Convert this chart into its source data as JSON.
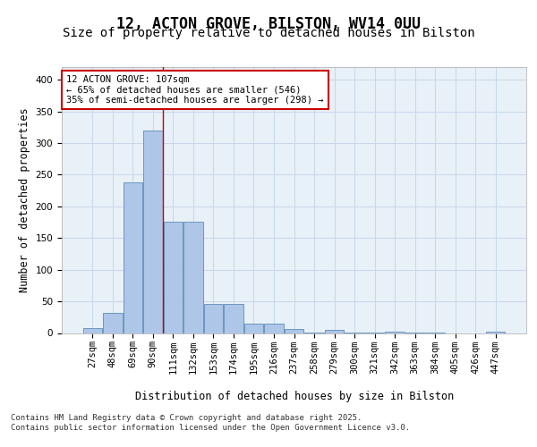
{
  "title": "12, ACTON GROVE, BILSTON, WV14 0UU",
  "subtitle": "Size of property relative to detached houses in Bilston",
  "xlabel": "Distribution of detached houses by size in Bilston",
  "ylabel": "Number of detached properties",
  "bar_labels": [
    "27sqm",
    "48sqm",
    "69sqm",
    "90sqm",
    "111sqm",
    "132sqm",
    "153sqm",
    "174sqm",
    "195sqm",
    "216sqm",
    "237sqm",
    "258sqm",
    "279sqm",
    "300sqm",
    "321sqm",
    "342sqm",
    "363sqm",
    "384sqm",
    "405sqm",
    "426sqm",
    "447sqm"
  ],
  "bar_values": [
    8,
    32,
    238,
    320,
    176,
    176,
    46,
    46,
    15,
    15,
    6,
    1,
    5,
    1,
    1,
    2,
    1,
    1,
    0,
    0,
    2
  ],
  "bar_color": "#aec6e8",
  "bar_edge_color": "#5b8db8",
  "bar_edge_width": 0.6,
  "grid_color": "#c8d8e8",
  "bg_color": "#e8f0f8",
  "red_line_x": 3.5,
  "annotation_text": "12 ACTON GROVE: 107sqm\n← 65% of detached houses are smaller (546)\n35% of semi-detached houses are larger (298) →",
  "annotation_box_color": "#ffffff",
  "annotation_box_edge": "#cc0000",
  "ylim": [
    0,
    420
  ],
  "yticks": [
    0,
    50,
    100,
    150,
    200,
    250,
    300,
    350,
    400
  ],
  "footer_line1": "Contains HM Land Registry data © Crown copyright and database right 2025.",
  "footer_line2": "Contains public sector information licensed under the Open Government Licence v3.0.",
  "title_fontsize": 12,
  "subtitle_fontsize": 10,
  "axis_label_fontsize": 8.5,
  "tick_fontsize": 7.5,
  "annotation_fontsize": 7.5,
  "footer_fontsize": 6.5
}
